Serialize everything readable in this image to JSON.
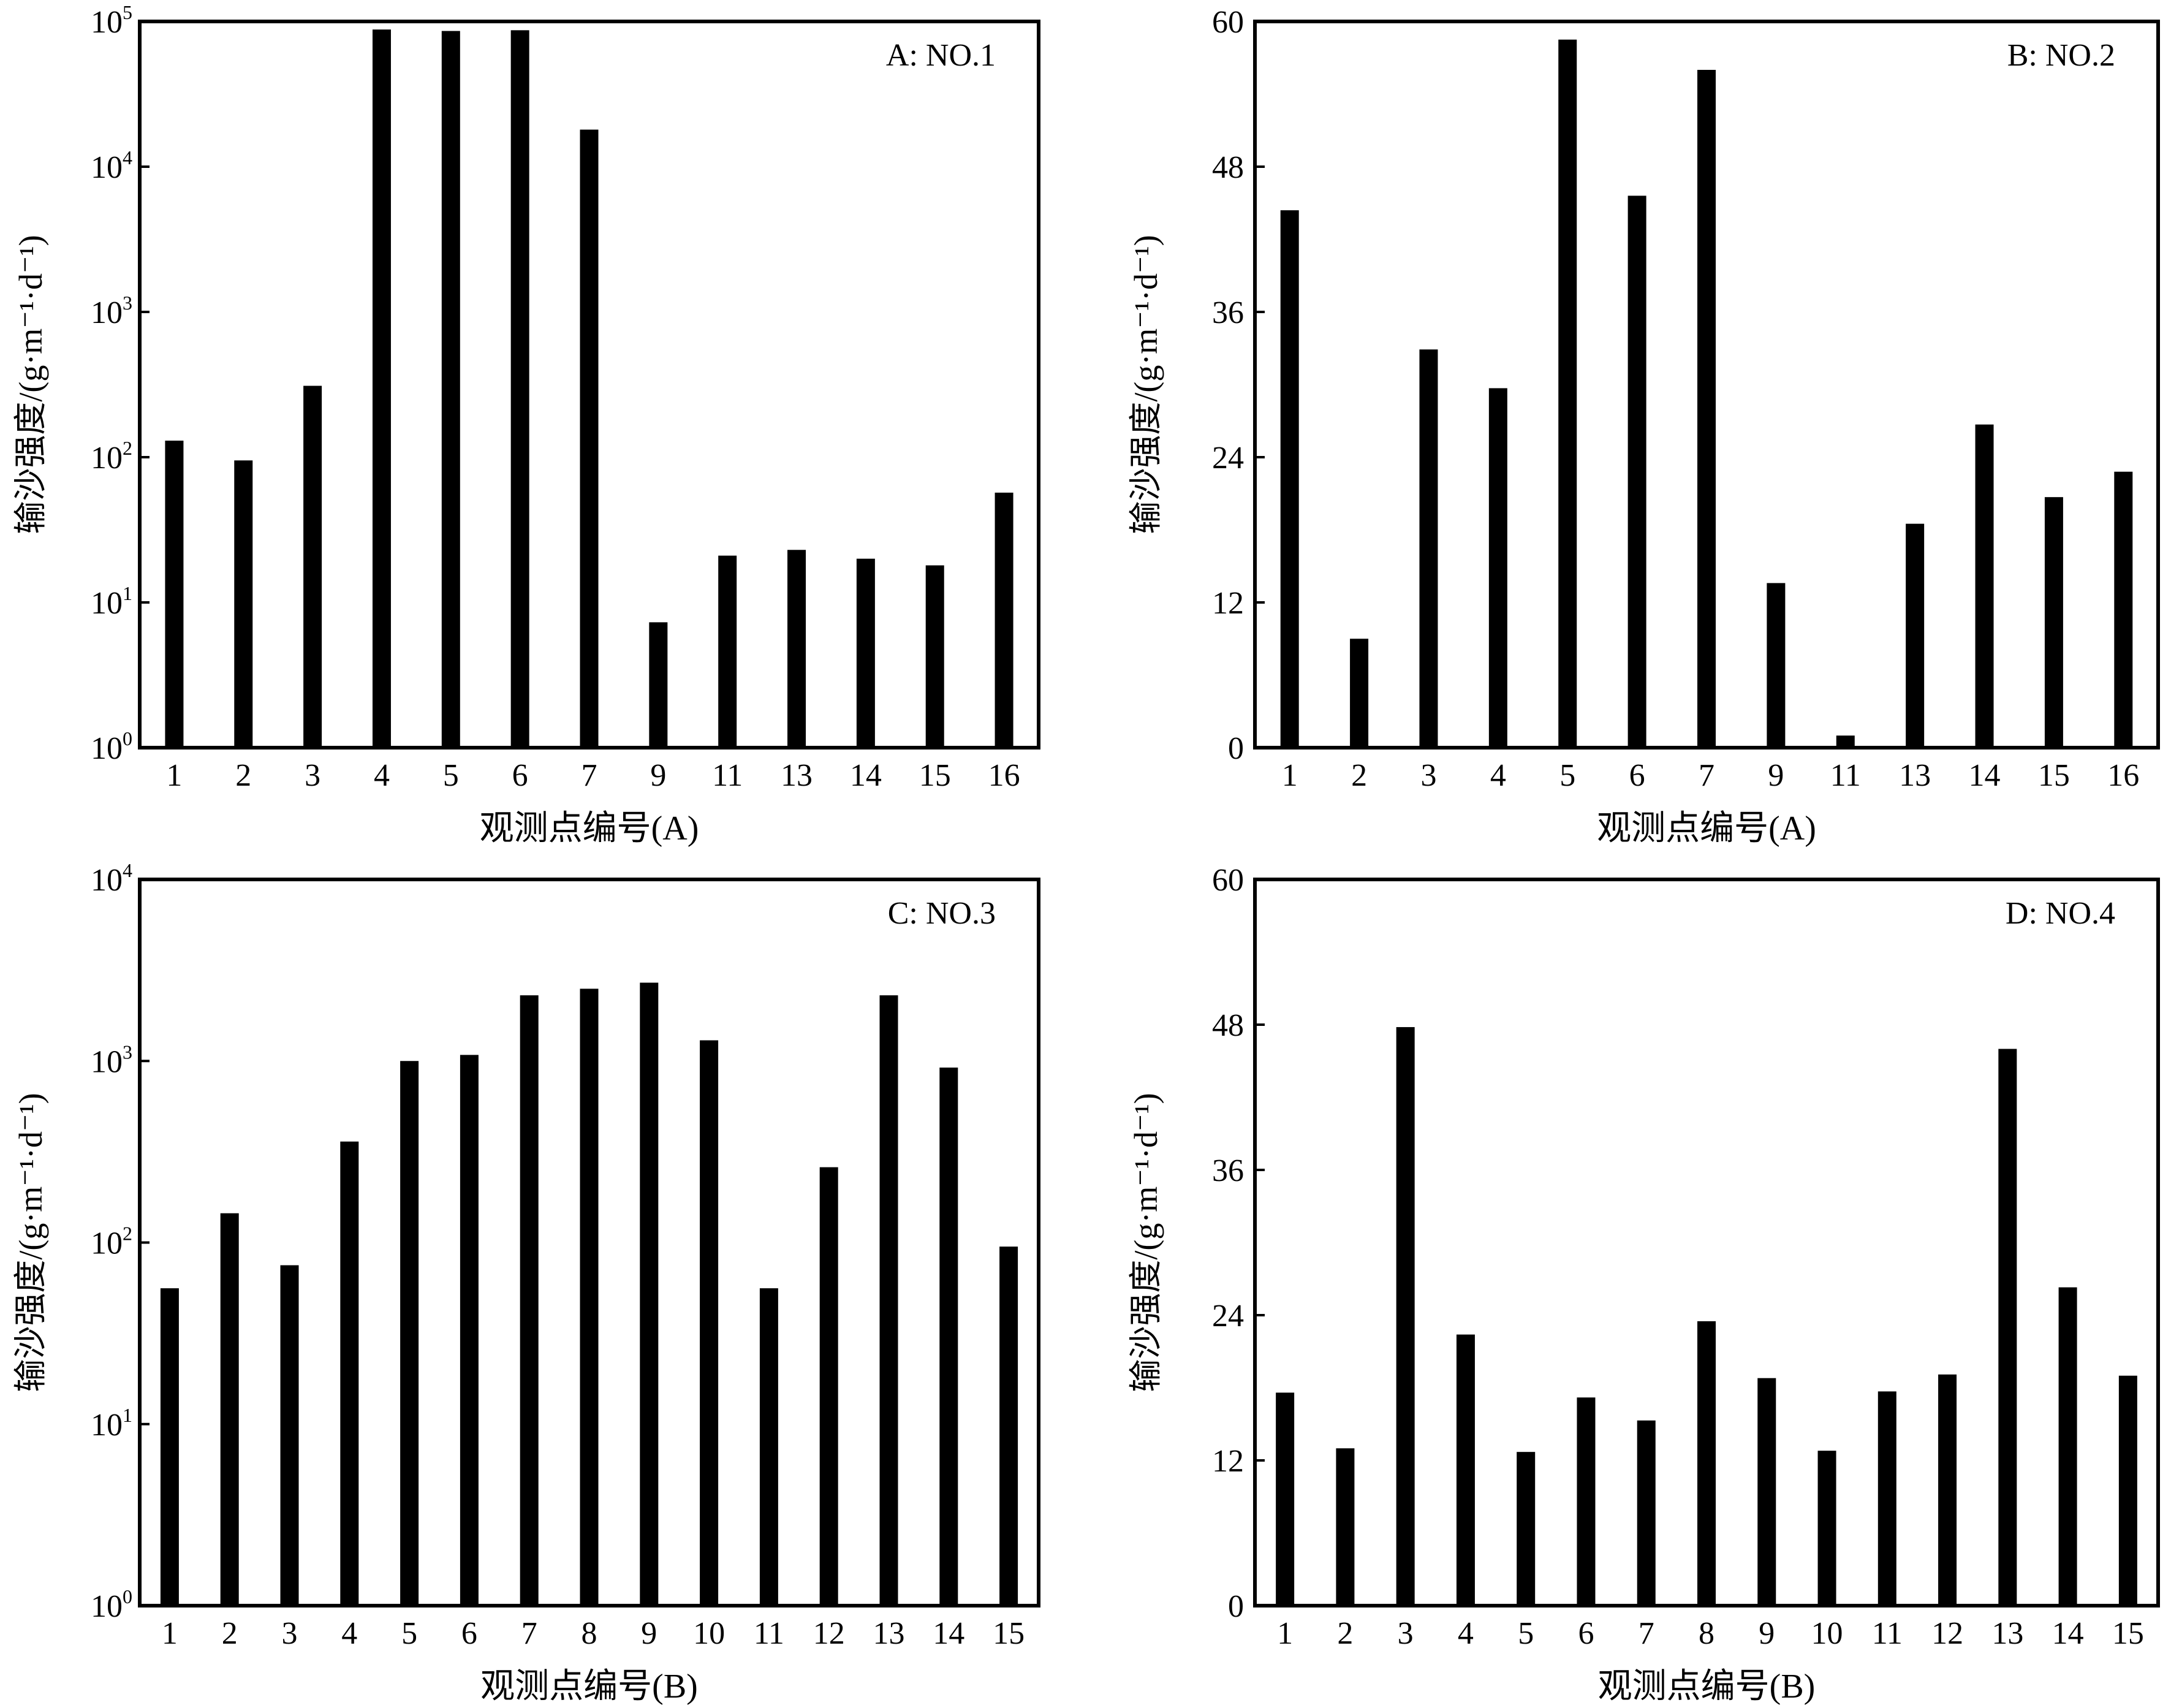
{
  "chart_data": [
    {
      "id": "A",
      "type": "bar",
      "title": "A: NO.1",
      "xlabel": "观测点编号(A)",
      "ylabel": "输沙强度/(g·m⁻¹·d⁻¹)",
      "yscale": "log",
      "ylim": [
        1,
        100000
      ],
      "yticks": [
        {
          "base": "10",
          "exp": "0"
        },
        {
          "base": "10",
          "exp": "1"
        },
        {
          "base": "10",
          "exp": "2"
        },
        {
          "base": "10",
          "exp": "3"
        },
        {
          "base": "10",
          "exp": "4"
        },
        {
          "base": "10",
          "exp": "5"
        }
      ],
      "categories": [
        "1",
        "2",
        "3",
        "4",
        "5",
        "6",
        "7",
        "9",
        "11",
        "13",
        "14",
        "15",
        "16"
      ],
      "values": [
        130,
        95,
        310,
        88000,
        86000,
        87000,
        18000,
        7.3,
        21,
        23,
        20,
        18,
        57
      ],
      "color": "#000000"
    },
    {
      "id": "B",
      "type": "bar",
      "title": "B: NO.2",
      "xlabel": "观测点编号(A)",
      "ylabel": "输沙强度/(g·m⁻¹·d⁻¹)",
      "yscale": "linear",
      "ylim": [
        0,
        60
      ],
      "yticks": [
        "0",
        "12",
        "24",
        "36",
        "48",
        "60"
      ],
      "categories": [
        "1",
        "2",
        "3",
        "4",
        "5",
        "6",
        "7",
        "9",
        "11",
        "13",
        "14",
        "15",
        "16"
      ],
      "values": [
        44.4,
        9.0,
        32.9,
        29.7,
        58.5,
        45.6,
        56.0,
        13.6,
        1.0,
        18.5,
        26.7,
        20.7,
        22.8
      ],
      "color": "#000000"
    },
    {
      "id": "C",
      "type": "bar",
      "title": "C: NO.3",
      "xlabel": "观测点编号(B)",
      "ylabel": "输沙强度/(g·m⁻¹·d⁻¹)",
      "yscale": "log",
      "ylim": [
        1,
        10000
      ],
      "yticks": [
        {
          "base": "10",
          "exp": "0"
        },
        {
          "base": "10",
          "exp": "1"
        },
        {
          "base": "10",
          "exp": "2"
        },
        {
          "base": "10",
          "exp": "3"
        },
        {
          "base": "10",
          "exp": "4"
        }
      ],
      "categories": [
        "1",
        "2",
        "3",
        "4",
        "5",
        "6",
        "7",
        "8",
        "9",
        "10",
        "11",
        "12",
        "13",
        "14",
        "15"
      ],
      "values": [
        56,
        145,
        75,
        360,
        1000,
        1080,
        2300,
        2500,
        2700,
        1300,
        56,
        260,
        2300,
        920,
        95
      ],
      "color": "#000000"
    },
    {
      "id": "D",
      "type": "bar",
      "title": "D: NO.4",
      "xlabel": "观测点编号(B)",
      "ylabel": "输沙强度/(g·m⁻¹·d⁻¹)",
      "yscale": "linear",
      "ylim": [
        0,
        60
      ],
      "yticks": [
        "0",
        "12",
        "24",
        "36",
        "48",
        "60"
      ],
      "categories": [
        "1",
        "2",
        "3",
        "4",
        "5",
        "6",
        "7",
        "8",
        "9",
        "10",
        "11",
        "12",
        "13",
        "14",
        "15"
      ],
      "values": [
        17.6,
        13.0,
        47.8,
        22.4,
        12.7,
        17.2,
        15.3,
        23.5,
        18.8,
        12.8,
        17.7,
        19.1,
        46.0,
        26.3,
        19.0
      ],
      "color": "#000000"
    }
  ]
}
